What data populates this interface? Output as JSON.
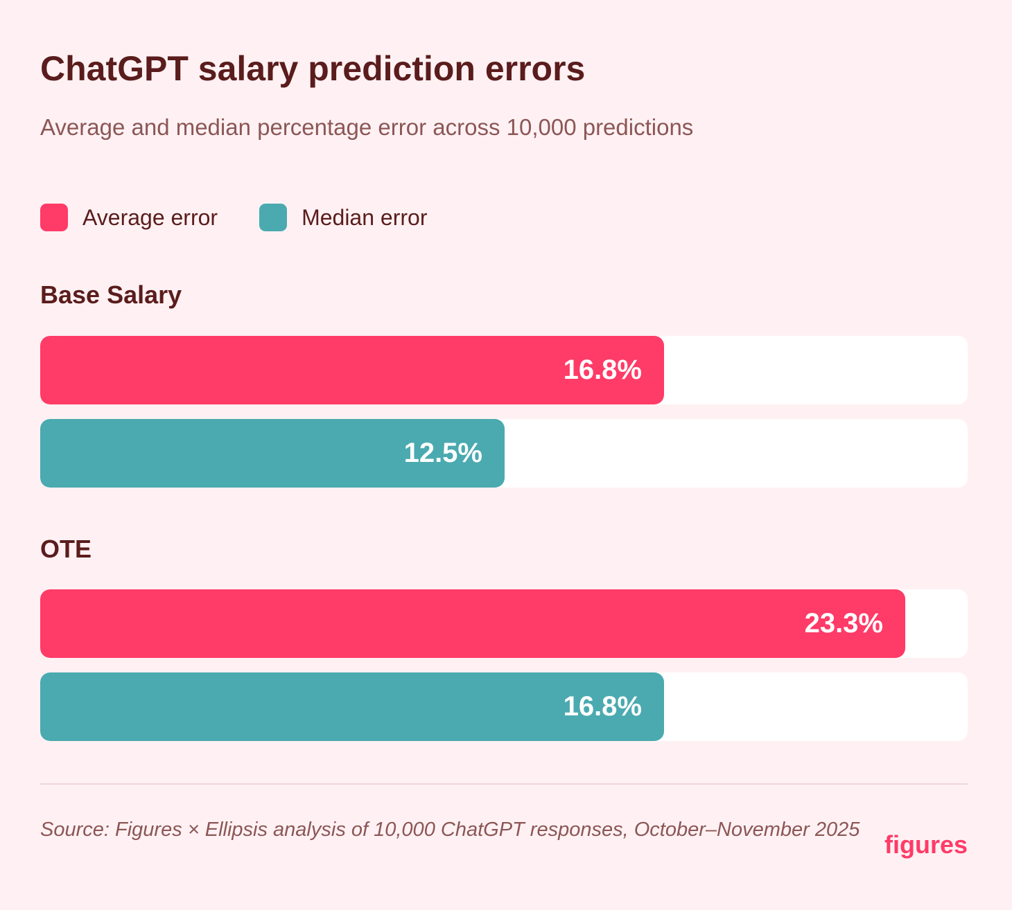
{
  "title": "ChatGPT salary prediction errors",
  "subtitle": "Average and median percentage error across 10,000 predictions",
  "legend": [
    {
      "label": "Average error",
      "color": "#ff3b68"
    },
    {
      "label": "Median error",
      "color": "#4aaab0"
    }
  ],
  "source": "Source: Figures × Ellipsis analysis of 10,000 ChatGPT responses, October–November 2025",
  "brand": "figures",
  "chart_data": {
    "type": "bar",
    "orientation": "horizontal",
    "categories": [
      "Base Salary",
      "OTE"
    ],
    "series": [
      {
        "name": "Average error",
        "color": "#ff3b68",
        "values": [
          16.8,
          23.3
        ],
        "labels": [
          "16.8%",
          "23.3%"
        ]
      },
      {
        "name": "Median error",
        "color": "#4aaab0",
        "values": [
          12.5,
          16.8
        ],
        "labels": [
          "12.5%",
          "16.8%"
        ]
      }
    ],
    "xlim": [
      0,
      25
    ],
    "grid": false,
    "legend_position": "top-left"
  }
}
